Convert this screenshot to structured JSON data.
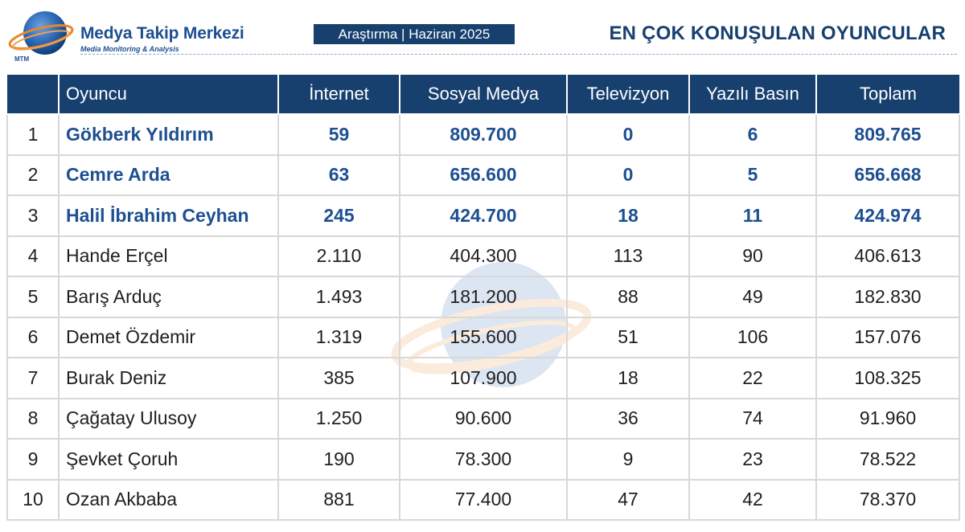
{
  "header": {
    "brand_name": "Medya Takip Merkezi",
    "brand_sub": "Media Monitoring & Analysis",
    "logo_initials": "MTM",
    "period_badge": "Araştırma | Haziran 2025",
    "title": "EN ÇOK KONUŞULAN OYUNCULAR"
  },
  "colors": {
    "navy": "#17406f",
    "brand_blue": "#1d4f91",
    "orange": "#e8872a",
    "border": "#d8d8d8"
  },
  "table": {
    "columns": [
      "",
      "Oyuncu",
      "İnternet",
      "Sosyal Medya",
      "Televizyon",
      "Yazılı Basın",
      "Toplam"
    ],
    "highlight_top": 3,
    "rows": [
      {
        "rank": "1",
        "name": "Gökberk Yıldırım",
        "internet": "59",
        "social": "809.700",
        "tv": "0",
        "press": "6",
        "total": "809.765"
      },
      {
        "rank": "2",
        "name": "Cemre Arda",
        "internet": "63",
        "social": "656.600",
        "tv": "0",
        "press": "5",
        "total": "656.668"
      },
      {
        "rank": "3",
        "name": "Halil İbrahim Ceyhan",
        "internet": "245",
        "social": "424.700",
        "tv": "18",
        "press": "11",
        "total": "424.974"
      },
      {
        "rank": "4",
        "name": "Hande Erçel",
        "internet": "2.110",
        "social": "404.300",
        "tv": "113",
        "press": "90",
        "total": "406.613"
      },
      {
        "rank": "5",
        "name": "Barış Arduç",
        "internet": "1.493",
        "social": "181.200",
        "tv": "88",
        "press": "49",
        "total": "182.830"
      },
      {
        "rank": "6",
        "name": "Demet Özdemir",
        "internet": "1.319",
        "social": "155.600",
        "tv": "51",
        "press": "106",
        "total": "157.076"
      },
      {
        "rank": "7",
        "name": "Burak Deniz",
        "internet": "385",
        "social": "107.900",
        "tv": "18",
        "press": "22",
        "total": "108.325"
      },
      {
        "rank": "8",
        "name": "Çağatay Ulusoy",
        "internet": "1.250",
        "social": "90.600",
        "tv": "36",
        "press": "74",
        "total": "91.960"
      },
      {
        "rank": "9",
        "name": "Şevket Çoruh",
        "internet": "190",
        "social": "78.300",
        "tv": "9",
        "press": "23",
        "total": "78.522"
      },
      {
        "rank": "10",
        "name": "Ozan Akbaba",
        "internet": "881",
        "social": "77.400",
        "tv": "47",
        "press": "42",
        "total": "78.370"
      }
    ]
  }
}
